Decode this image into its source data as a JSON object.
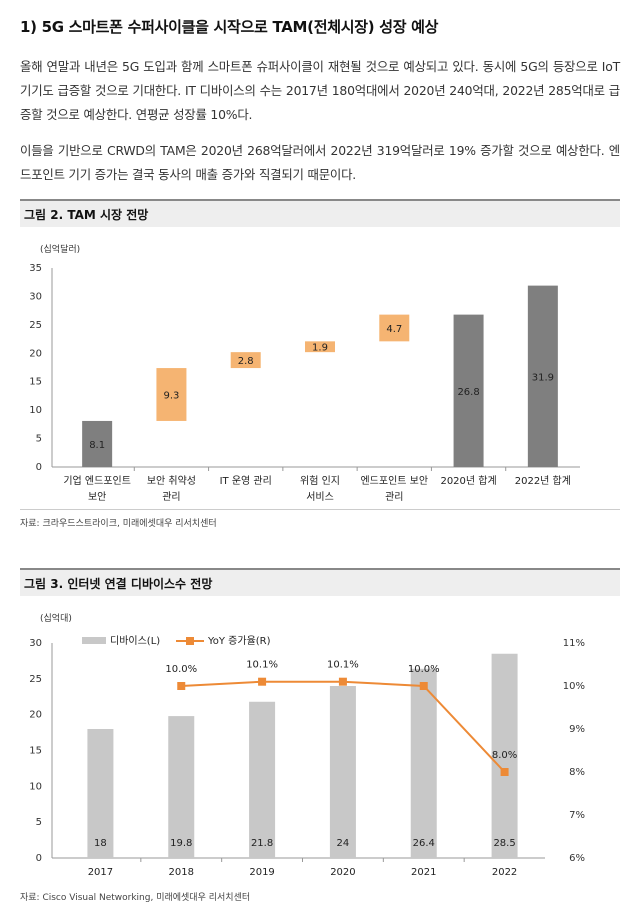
{
  "section": {
    "title": "1) 5G 스마트폰 수퍼사이클을 시작으로 TAM(전체시장) 성장 예상",
    "paragraphs": [
      "올해 연말과 내년은 5G 도입과 함께 스마트폰 슈퍼사이클이 재현될 것으로 예상되고 있다. 동시에 5G의 등장으로 IoT 기기도 급증할 것으로 기대한다. IT 디바이스의 수는 2017년 180억대에서 2020년 240억대, 2022년 285억대로 급증할 것으로 예상한다. 연평균 성장률 10%다.",
      "이들을 기반으로 CRWD의 TAM은 2020년 268억달러에서 2022년 319억달러로 19% 증가할 것으로 예상한다. 엔드포인트 기기 증가는 결국 동사의 매출 증가와 직결되기 때문이다."
    ]
  },
  "figure2": {
    "header": "그림 2. TAM 시장 전망",
    "source": "자료: 크라우드스트라이크, 미래에셋대우 리서치센터"
  },
  "figure3": {
    "header": "그림 3. 인터넷 연결 디바이스수 전망",
    "source": "자료: Cisco Visual Networking, 미래에셋대우 리서치센터"
  },
  "colors": {
    "gray_dark": "#7f7f7f",
    "orange": "#f5b472",
    "gray_light": "#c8c8c8",
    "line_orange": "#ed8a36"
  },
  "chart_data": [
    {
      "type": "bar",
      "subtype": "waterfall",
      "unit_label": "(십억달러)",
      "categories": [
        [
          "기업 엔드포인트",
          "보안"
        ],
        [
          "보안 취약성",
          "관리"
        ],
        [
          "IT 운영 관리"
        ],
        [
          "위험 인지",
          "서비스"
        ],
        [
          "엔드포인트 보안",
          "관리"
        ],
        [
          "2020년 합계"
        ],
        [
          "2022년 합계"
        ]
      ],
      "values": [
        8.1,
        9.3,
        2.8,
        1.9,
        4.7,
        26.8,
        31.9
      ],
      "labels": [
        "8.1",
        "9.3",
        "2.8",
        "1.9",
        "4.7",
        "26.8",
        "31.9"
      ],
      "bar_kind": [
        "total",
        "step",
        "step",
        "step",
        "step",
        "total",
        "total"
      ],
      "y_ticks": [
        "0",
        "5",
        "10",
        "15",
        "20",
        "25",
        "30",
        "35"
      ],
      "ylim": [
        0,
        35
      ]
    },
    {
      "type": "bar",
      "subtype": "bar+line dual axis",
      "unit_label": "(십억대)",
      "categories": [
        "2017",
        "2018",
        "2019",
        "2020",
        "2021",
        "2022"
      ],
      "series": [
        {
          "name": "디바이스(L)",
          "type": "bar",
          "values": [
            18,
            19.8,
            21.8,
            24,
            26.4,
            28.5
          ],
          "labels": [
            "18",
            "19.8",
            "21.8",
            "24",
            "26.4",
            "28.5"
          ]
        },
        {
          "name": "YoY 증가율(R)",
          "type": "line",
          "values": [
            null,
            10.0,
            10.1,
            10.1,
            10.0,
            8.0
          ],
          "labels": [
            "",
            "10.0%",
            "10.1%",
            "10.1%",
            "10.0%",
            "8.0%"
          ]
        }
      ],
      "y_left_ticks": [
        "0",
        "5",
        "10",
        "15",
        "20",
        "25",
        "30"
      ],
      "y_right_ticks": [
        "6%",
        "7%",
        "8%",
        "9%",
        "10%",
        "11%"
      ],
      "ylim_left": [
        0,
        30
      ],
      "ylim_right": [
        6,
        11
      ]
    }
  ]
}
